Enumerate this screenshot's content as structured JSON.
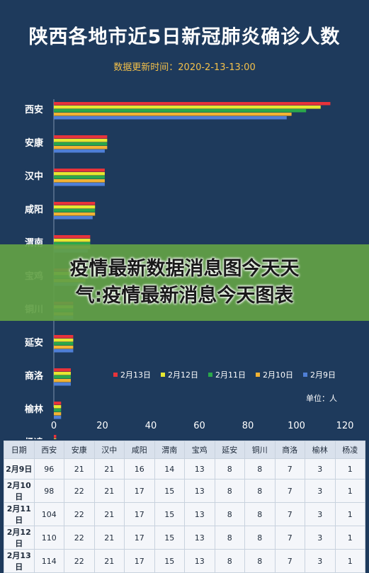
{
  "colors": {
    "background": "#1e3a5c",
    "feb13": "#e8333a",
    "feb12": "#e6e830",
    "feb11": "#2aa84a",
    "feb10": "#f2b233",
    "feb9": "#4f7fd6"
  },
  "chart_data": {
    "type": "bar",
    "orientation": "horizontal",
    "title": "陕西各地市近5日新冠肺炎确诊人数",
    "subtitle": "数据更新时间：2020-2-13-13:00",
    "unit_label": "单位：人",
    "xlim": [
      0,
      120
    ],
    "x_ticks": [
      0,
      20,
      40,
      60,
      80,
      100,
      120
    ],
    "categories": [
      "西安",
      "安康",
      "汉中",
      "咸阳",
      "渭南",
      "宝鸡",
      "铜川",
      "延安",
      "商洛",
      "榆林",
      "杨凌"
    ],
    "series": [
      {
        "name": "2月13日",
        "color": "#e8333a",
        "values": [
          114,
          22,
          21,
          17,
          15,
          13,
          8,
          8,
          7,
          3,
          1
        ]
      },
      {
        "name": "2月12日",
        "color": "#e6e830",
        "values": [
          110,
          22,
          21,
          17,
          15,
          13,
          8,
          8,
          7,
          3,
          1
        ]
      },
      {
        "name": "2月11日",
        "color": "#2aa84a",
        "values": [
          104,
          22,
          21,
          17,
          15,
          13,
          8,
          8,
          7,
          3,
          1
        ]
      },
      {
        "name": "2月10日",
        "color": "#f2b233",
        "values": [
          98,
          22,
          21,
          17,
          15,
          13,
          8,
          8,
          7,
          3,
          1
        ]
      },
      {
        "name": "2月9日",
        "color": "#4f7fd6",
        "values": [
          96,
          21,
          21,
          16,
          14,
          13,
          8,
          8,
          7,
          3,
          1
        ]
      }
    ],
    "legend_placement": "bottom-right",
    "grid": false
  },
  "overlay": {
    "line1": "疫情最新数据消息图今天天",
    "line2": "气:疫情最新消息今天图表"
  },
  "table": {
    "headers": [
      "日期",
      "西安",
      "安康",
      "汉中",
      "咸阳",
      "渭南",
      "宝鸡",
      "延安",
      "铜川",
      "商洛",
      "榆林",
      "杨凌"
    ],
    "rows": [
      [
        "2月9日",
        "96",
        "21",
        "21",
        "16",
        "14",
        "13",
        "8",
        "8",
        "7",
        "3",
        "1"
      ],
      [
        "2月10日",
        "98",
        "22",
        "21",
        "17",
        "15",
        "13",
        "8",
        "8",
        "7",
        "3",
        "1"
      ],
      [
        "2月11日",
        "104",
        "22",
        "21",
        "17",
        "15",
        "13",
        "8",
        "8",
        "7",
        "3",
        "1"
      ],
      [
        "2月12日",
        "110",
        "22",
        "21",
        "17",
        "15",
        "13",
        "8",
        "8",
        "7",
        "3",
        "1"
      ],
      [
        "2月13日",
        "114",
        "22",
        "21",
        "17",
        "15",
        "13",
        "8",
        "8",
        "7",
        "3",
        "1"
      ]
    ]
  }
}
